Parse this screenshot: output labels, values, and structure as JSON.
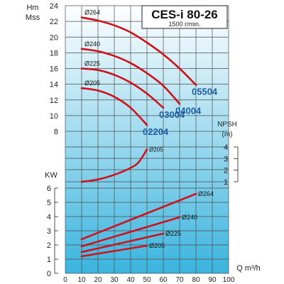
{
  "title": "CES-i 80-26",
  "speed": "1500 r/min.",
  "colors": {
    "curve": "#d0101a",
    "model_label": "#1a5fa6",
    "grid": "#4d4d4d",
    "bg_top": "#ffffff",
    "bg_bottom": "#3ab4de"
  },
  "chart_data": [
    {
      "type": "line",
      "name": "head",
      "xlabel": "Q m³/h",
      "ylabel": "Hm",
      "ylabel2": "Mss",
      "xlim": [
        0,
        100
      ],
      "ylim": [
        8,
        24
      ],
      "xticks": [
        0,
        10,
        20,
        30,
        40,
        50,
        60,
        70,
        80,
        90,
        100
      ],
      "yticks": [
        8,
        10,
        12,
        14,
        16,
        18,
        20,
        22,
        24
      ],
      "series": [
        {
          "name": "Ø264",
          "model": "05504",
          "x": [
            10,
            20,
            30,
            40,
            50,
            60,
            70,
            80
          ],
          "y": [
            22.5,
            22.1,
            21.5,
            20.6,
            19.3,
            17.8,
            16.0,
            13.9
          ]
        },
        {
          "name": "Ø240",
          "model": "04004",
          "x": [
            10,
            20,
            30,
            40,
            50,
            60,
            70
          ],
          "y": [
            18.5,
            18.2,
            17.6,
            16.7,
            15.4,
            13.8,
            11.5
          ]
        },
        {
          "name": "Ø225",
          "model": "03004",
          "x": [
            10,
            20,
            30,
            40,
            50,
            60
          ],
          "y": [
            16.0,
            15.8,
            15.2,
            14.2,
            12.8,
            11.0
          ]
        },
        {
          "name": "Ø205",
          "model": "02204",
          "x": [
            10,
            20,
            30,
            40,
            50
          ],
          "y": [
            13.5,
            13.2,
            12.4,
            11.0,
            8.8
          ]
        }
      ]
    },
    {
      "type": "line",
      "name": "npsh",
      "ylabel": "NPSH",
      "ylabel2": "(m)",
      "xlim": [
        0,
        100
      ],
      "ylim": [
        1,
        4
      ],
      "yticks": [
        1,
        2,
        3,
        4
      ],
      "series": [
        {
          "name": "Ø205",
          "x": [
            10,
            20,
            30,
            40,
            45,
            50
          ],
          "y": [
            1.0,
            1.2,
            1.6,
            2.2,
            2.7,
            3.8
          ]
        }
      ]
    },
    {
      "type": "line",
      "name": "power",
      "ylabel": "KW",
      "xlim": [
        0,
        100
      ],
      "ylim": [
        0,
        6
      ],
      "yticks": [
        0,
        1,
        2,
        3,
        4,
        5,
        6
      ],
      "series": [
        {
          "name": "Ø264",
          "x": [
            10,
            80
          ],
          "y": [
            2.4,
            5.6
          ]
        },
        {
          "name": "Ø240",
          "x": [
            10,
            70
          ],
          "y": [
            1.9,
            3.95
          ]
        },
        {
          "name": "Ø225",
          "x": [
            10,
            60
          ],
          "y": [
            1.5,
            2.8
          ]
        },
        {
          "name": "Ø205",
          "x": [
            10,
            50
          ],
          "y": [
            1.2,
            1.95
          ]
        }
      ]
    }
  ]
}
